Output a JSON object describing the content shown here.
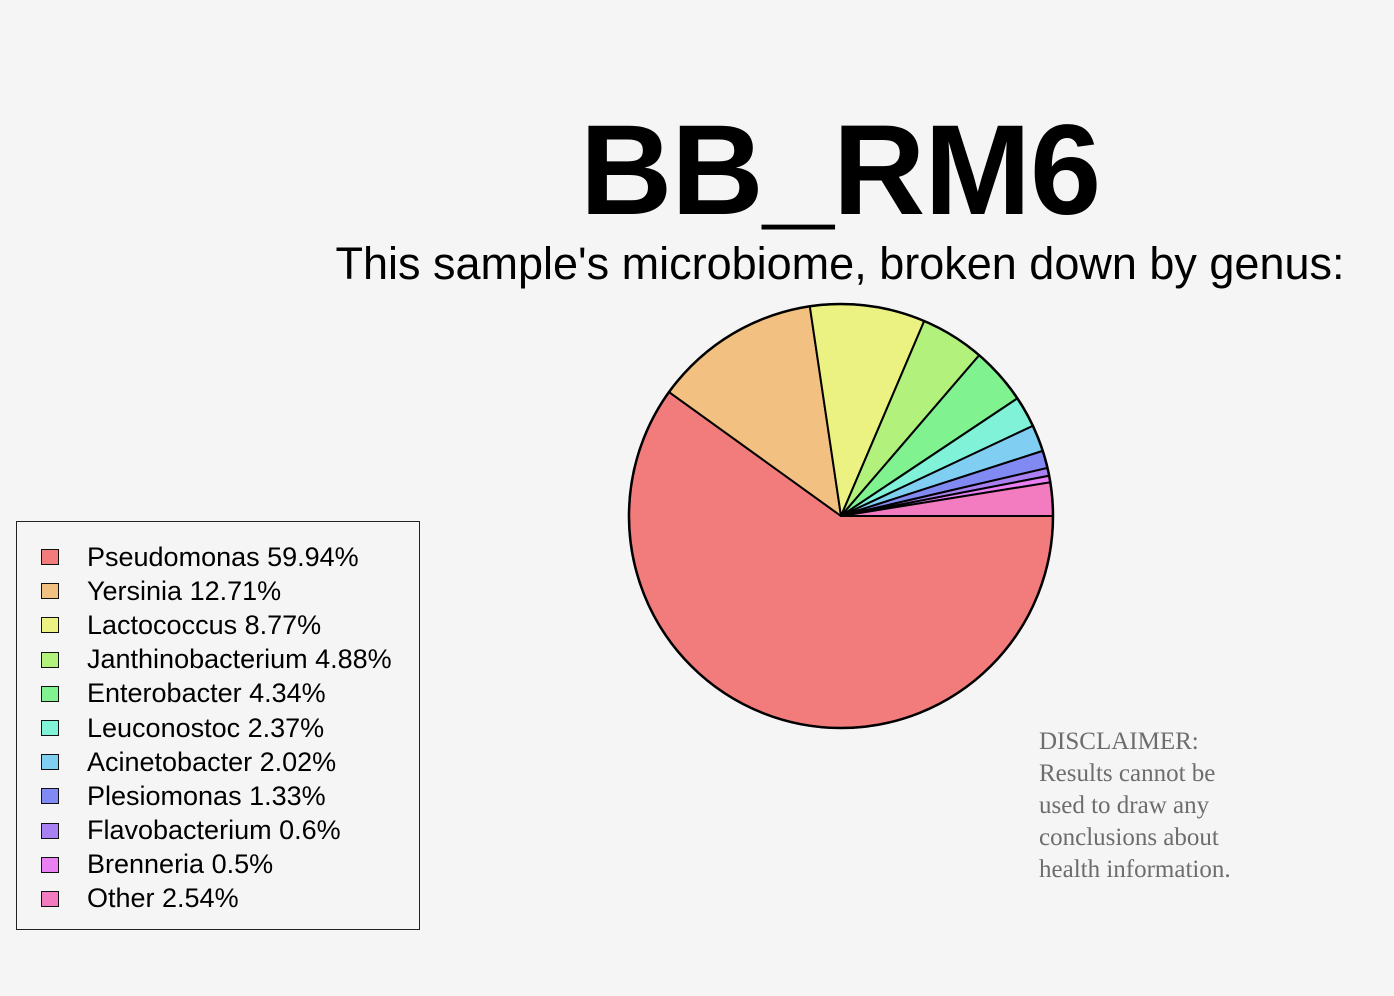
{
  "chart_data": {
    "type": "pie",
    "title": "BB_RM6",
    "subtitle": "This sample's microbiome, broken down by genus:",
    "slices": [
      {
        "label": "Pseudomonas",
        "value": 59.94,
        "display": "Pseudomonas 59.94%",
        "color": "#f27c7c"
      },
      {
        "label": "Yersinia",
        "value": 12.71,
        "display": "Yersinia 12.71%",
        "color": "#f2c080"
      },
      {
        "label": "Lactococcus",
        "value": 8.77,
        "display": "Lactococcus 8.77%",
        "color": "#ecf282"
      },
      {
        "label": "Janthinobacterium",
        "value": 4.88,
        "display": "Janthinobacterium 4.88%",
        "color": "#b2f27c"
      },
      {
        "label": "Enterobacter",
        "value": 4.34,
        "display": "Enterobacter 4.34%",
        "color": "#80f290"
      },
      {
        "label": "Leuconostoc",
        "value": 2.37,
        "display": "Leuconostoc 2.37%",
        "color": "#80f2d8"
      },
      {
        "label": "Acinetobacter",
        "value": 2.02,
        "display": "Acinetobacter 2.02%",
        "color": "#80cff2"
      },
      {
        "label": "Plesiomonas",
        "value": 1.33,
        "display": "Plesiomonas 1.33%",
        "color": "#808af2"
      },
      {
        "label": "Flavobacterium",
        "value": 0.6,
        "display": "Flavobacterium 0.6%",
        "color": "#a880f2"
      },
      {
        "label": "Brenneria",
        "value": 0.5,
        "display": "Brenneria 0.5%",
        "color": "#e880f2"
      },
      {
        "label": "Other",
        "value": 2.54,
        "display": "Other 2.54%",
        "color": "#f27cbf"
      }
    ],
    "start_angle_deg": 0,
    "direction": "clockwise",
    "legend_position": "bottom-left"
  },
  "disclaimer": {
    "lines": [
      "DISCLAIMER:",
      "Results cannot be",
      "used to draw any",
      "conclusions about",
      "health information."
    ]
  }
}
